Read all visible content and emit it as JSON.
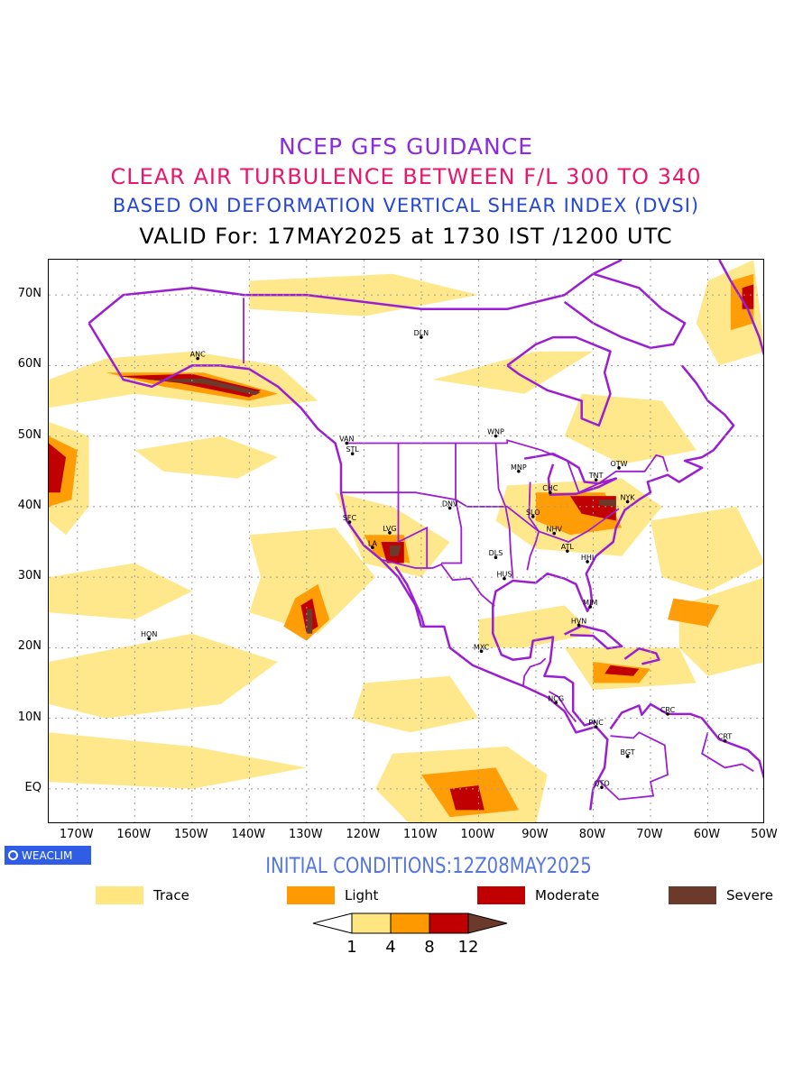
{
  "title": {
    "line1": "NCEP GFS GUIDANCE",
    "line2": "CLEAR AIR TURBULENCE BETWEEN F/L 300 TO 340",
    "line3": "BASED ON DEFORMATION VERTICAL SHEAR INDEX (DVSI)",
    "line4": "VALID For: 17MAY2025 at 1730 IST /1200 UTC"
  },
  "initial_conditions": "INITIAL CONDITIONS:12Z08MAY2025",
  "badge": "WEACLIM",
  "map": {
    "lon_range": [
      -175,
      -50
    ],
    "lat_range": [
      -5,
      75
    ],
    "lat_labels": [
      "70N",
      "60N",
      "50N",
      "40N",
      "30N",
      "20N",
      "10N",
      "EQ"
    ],
    "lon_labels": [
      "170W",
      "160W",
      "150W",
      "140W",
      "130W",
      "120W",
      "110W",
      "100W",
      "90W",
      "80W",
      "70W",
      "60W",
      "50W"
    ],
    "stations": [
      {
        "code": "DLN",
        "lon": -110,
        "lat": 64
      },
      {
        "code": "ANC",
        "lon": -149,
        "lat": 61
      },
      {
        "code": "VAN",
        "lon": -123,
        "lat": 49
      },
      {
        "code": "STL",
        "lon": -122,
        "lat": 47.5
      },
      {
        "code": "WNP",
        "lon": -97,
        "lat": 50
      },
      {
        "code": "MNP",
        "lon": -93,
        "lat": 45
      },
      {
        "code": "OTW",
        "lon": -75.5,
        "lat": 45.5
      },
      {
        "code": "TNT",
        "lon": -79.5,
        "lat": 43.8
      },
      {
        "code": "CHC",
        "lon": -87.5,
        "lat": 42
      },
      {
        "code": "NYK",
        "lon": -74,
        "lat": 40.7
      },
      {
        "code": "DNV",
        "lon": -105,
        "lat": 39.8
      },
      {
        "code": "SFC",
        "lon": -122.5,
        "lat": 37.8
      },
      {
        "code": "LVG",
        "lon": -115.5,
        "lat": 36.3
      },
      {
        "code": "SLO",
        "lon": -90.5,
        "lat": 38.6
      },
      {
        "code": "NHV",
        "lon": -86.8,
        "lat": 36.2
      },
      {
        "code": "LA",
        "lon": -118.5,
        "lat": 34.2
      },
      {
        "code": "DLS",
        "lon": -97,
        "lat": 32.8
      },
      {
        "code": "ATL",
        "lon": -84.5,
        "lat": 33.7
      },
      {
        "code": "HHI",
        "lon": -81,
        "lat": 32.2
      },
      {
        "code": "HUS",
        "lon": -95.5,
        "lat": 29.8
      },
      {
        "code": "MIM",
        "lon": -80.5,
        "lat": 25.8
      },
      {
        "code": "HVN",
        "lon": -82.5,
        "lat": 23.2
      },
      {
        "code": "HON",
        "lon": -157.5,
        "lat": 21.3
      },
      {
        "code": "MXC",
        "lon": -99.5,
        "lat": 19.5
      },
      {
        "code": "NCG",
        "lon": -86.5,
        "lat": 12.2
      },
      {
        "code": "CRC",
        "lon": -67,
        "lat": 10.6
      },
      {
        "code": "PNC",
        "lon": -79.5,
        "lat": 8.8
      },
      {
        "code": "CRT",
        "lon": -57,
        "lat": 6.8
      },
      {
        "code": "BGT",
        "lon": -74,
        "lat": 4.6
      },
      {
        "code": "QTO",
        "lon": -78.5,
        "lat": 0.2
      }
    ]
  },
  "legend": [
    {
      "label": "Trace",
      "color": "#ffe680"
    },
    {
      "label": "Light",
      "color": "#ff9900"
    },
    {
      "label": "Moderate",
      "color": "#c00000"
    },
    {
      "label": "Severe",
      "color": "#6b3a2a"
    }
  ],
  "colorbar": {
    "ticks": [
      "1",
      "4",
      "8",
      "12"
    ],
    "colors": [
      "#ffffff",
      "#ffe680",
      "#ff9900",
      "#c00000",
      "#6b3a2a"
    ]
  },
  "colors": {
    "boundary": "#9b1fd1",
    "grid": "#9a9a9a"
  }
}
